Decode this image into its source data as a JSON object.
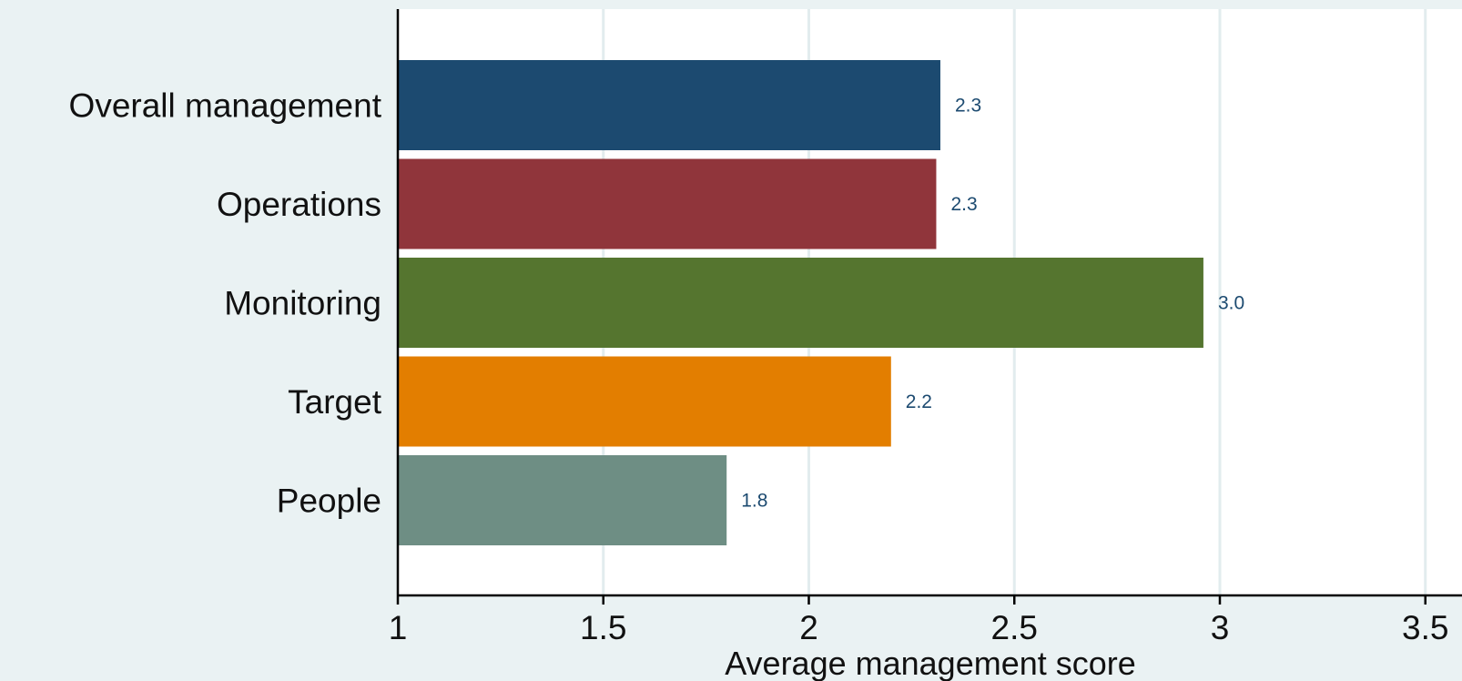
{
  "chart_data": {
    "type": "bar",
    "orientation": "horizontal",
    "categories": [
      "Overall management",
      "Operations",
      "Monitoring",
      "Target",
      "People"
    ],
    "values": [
      2.32,
      2.31,
      2.96,
      2.2,
      1.8
    ],
    "value_labels": [
      "2.3",
      "2.3",
      "3.0",
      "2.2",
      "1.8"
    ],
    "colors": [
      "#1c4a70",
      "#90353b",
      "#55752f",
      "#e37e00",
      "#6e8e84"
    ],
    "xlabel": "Average management score",
    "ylabel": "",
    "xlim": [
      1,
      3.6
    ],
    "xticks": [
      1,
      1.5,
      2,
      2.5,
      3,
      3.5
    ],
    "xtick_labels": [
      "1",
      "1.5",
      "2",
      "2.5",
      "3",
      "3.5"
    ],
    "grid": "vertical",
    "legend": "none",
    "value_label_color": "#1c4a70",
    "plot_background": "#ffffff",
    "outer_background": "#eaf2f3",
    "grid_color": "#e2ecee"
  }
}
